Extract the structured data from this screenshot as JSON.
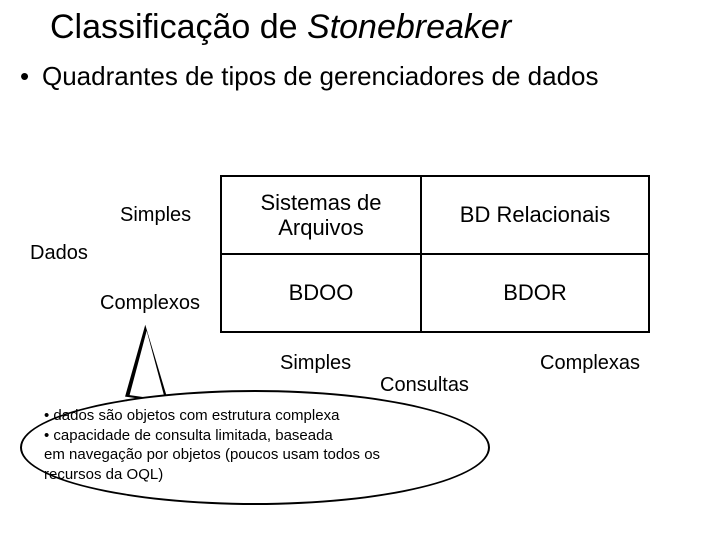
{
  "title_plain": "Classificação de ",
  "title_italic": "Stonebreaker",
  "bullet": "Quadrantes de tipos de gerenciadores de dados",
  "y_axis": {
    "label": "Dados",
    "top": "Simples",
    "bottom": "Complexos"
  },
  "x_axis": {
    "label": "Consultas",
    "left": "Simples",
    "right": "Complexas"
  },
  "quadrants": {
    "top_left": "Sistemas de Arquivos",
    "top_right": "BD Relacionais",
    "bottom_left": "BDOO",
    "bottom_right": "BDOR"
  },
  "callout": {
    "line1": "• dados são objetos com estrutura complexa",
    "line2": "• capacidade de consulta limitada, baseada",
    "line3": "  em navegação por objetos (poucos usam todos os",
    "line4": "  recursos da OQL)"
  },
  "colors": {
    "background": "#ffffff",
    "text": "#000000",
    "border": "#000000"
  }
}
